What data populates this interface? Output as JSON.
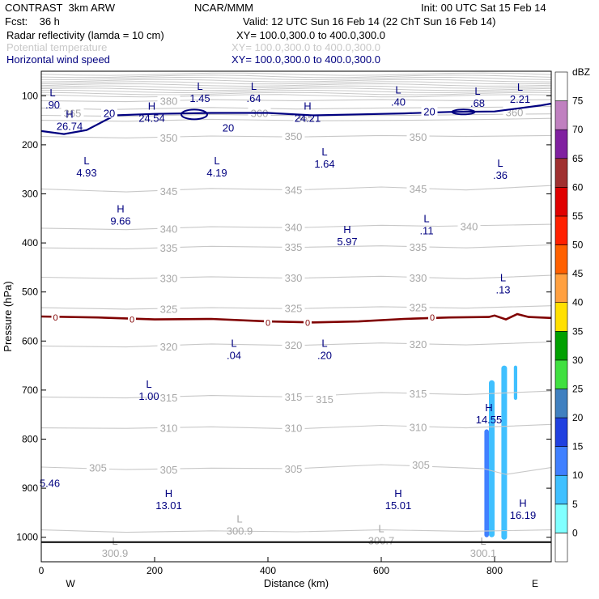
{
  "header": {
    "model": "CONTRAST  3km ARW",
    "source": "NCAR/MMM",
    "init": "Init: 00 UTC Sat 15 Feb 14",
    "fcst": "Fcst:    36 h",
    "valid": "Valid: 12 UTC Sun 16 Feb 14 (22 ChT Sun 16 Feb 14)",
    "fields": [
      {
        "label": "Radar reflectivity (lamda = 10 cm)",
        "xy": "XY= 100.0,300.0 to 400.0,300.0",
        "color": "#000080"
      },
      {
        "label": "Potential temperature",
        "xy": "XY= 100.0,300.0 to 400.0,300.0",
        "color": "#c8c8c8"
      },
      {
        "label": "Horizontal wind speed",
        "xy": "XY= 100.0,300.0 to 400.0,300.0",
        "color": "#000080"
      }
    ]
  },
  "chart_data": {
    "type": "cross-section",
    "xlabel": "Distance (km)",
    "ylabel": "Pressure (hPa)",
    "xlim": [
      0,
      900
    ],
    "ylim": [
      50,
      1050
    ],
    "x_ticks": [
      0,
      200,
      400,
      600,
      800
    ],
    "y_ticks": [
      100,
      200,
      300,
      400,
      500,
      600,
      700,
      800,
      900,
      1000
    ],
    "x_end_labels": {
      "left": "W",
      "right": "E"
    },
    "theta_contours": [
      {
        "value": 380,
        "points": [
          [
            0,
            110
          ],
          [
            150,
            112
          ],
          [
            300,
            108
          ],
          [
            450,
            110
          ],
          [
            600,
            108
          ],
          [
            750,
            110
          ],
          [
            900,
            108
          ]
        ]
      },
      {
        "value": 370,
        "points": [
          [
            0,
            125
          ],
          [
            120,
            128
          ],
          [
            300,
            124
          ],
          [
            450,
            127
          ],
          [
            600,
            125
          ],
          [
            750,
            124
          ],
          [
            900,
            122
          ]
        ]
      },
      {
        "value": 365,
        "points": [
          [
            0,
            140
          ],
          [
            150,
            142
          ],
          [
            300,
            138
          ],
          [
            480,
            141
          ],
          [
            650,
            140
          ],
          [
            800,
            138
          ],
          [
            900,
            137
          ]
        ]
      },
      {
        "value": 360,
        "points": [
          [
            0,
            150
          ],
          [
            150,
            152
          ],
          [
            300,
            148
          ],
          [
            480,
            151
          ],
          [
            650,
            150
          ],
          [
            800,
            148
          ],
          [
            900,
            146
          ]
        ]
      },
      {
        "value": 350,
        "points": [
          [
            0,
            183
          ],
          [
            150,
            186
          ],
          [
            300,
            182
          ],
          [
            450,
            184
          ],
          [
            600,
            181
          ],
          [
            750,
            183
          ],
          [
            900,
            181
          ]
        ]
      },
      {
        "value": 345,
        "points": [
          [
            0,
            290
          ],
          [
            150,
            296
          ],
          [
            300,
            289
          ],
          [
            450,
            292
          ],
          [
            600,
            286
          ],
          [
            750,
            292
          ],
          [
            900,
            283
          ]
        ]
      },
      {
        "value": 340,
        "points": [
          [
            0,
            370
          ],
          [
            150,
            373
          ],
          [
            300,
            367
          ],
          [
            450,
            369
          ],
          [
            600,
            364
          ],
          [
            700,
            366
          ],
          [
            900,
            362
          ]
        ]
      },
      {
        "value": 335,
        "points": [
          [
            0,
            410
          ],
          [
            150,
            412
          ],
          [
            300,
            407
          ],
          [
            450,
            409
          ],
          [
            600,
            406
          ],
          [
            750,
            410
          ],
          [
            900,
            404
          ]
        ]
      },
      {
        "value": 330,
        "points": [
          [
            0,
            470
          ],
          [
            150,
            473
          ],
          [
            300,
            469
          ],
          [
            450,
            472
          ],
          [
            600,
            468
          ],
          [
            750,
            473
          ],
          [
            900,
            466
          ]
        ]
      },
      {
        "value": 325,
        "points": [
          [
            0,
            532
          ],
          [
            150,
            535
          ],
          [
            300,
            532
          ],
          [
            450,
            534
          ],
          [
            600,
            530
          ],
          [
            750,
            533
          ],
          [
            900,
            528
          ]
        ]
      },
      {
        "value": 320,
        "points": [
          [
            0,
            610
          ],
          [
            150,
            612
          ],
          [
            300,
            606
          ],
          [
            450,
            609
          ],
          [
            600,
            604
          ],
          [
            750,
            608
          ],
          [
            900,
            602
          ]
        ]
      },
      {
        "value": 315,
        "points": [
          [
            0,
            714
          ],
          [
            150,
            716
          ],
          [
            300,
            711
          ],
          [
            450,
            714
          ],
          [
            600,
            705
          ],
          [
            750,
            709
          ],
          [
            900,
            702
          ]
        ]
      },
      {
        "value": 310,
        "points": [
          [
            0,
            777
          ],
          [
            150,
            778
          ],
          [
            300,
            775
          ],
          [
            450,
            779
          ],
          [
            600,
            772
          ],
          [
            750,
            777
          ],
          [
            900,
            770
          ]
        ]
      },
      {
        "value": 305,
        "points": [
          [
            0,
            857
          ],
          [
            150,
            862
          ],
          [
            300,
            859
          ],
          [
            450,
            860
          ],
          [
            600,
            852
          ],
          [
            780,
            860
          ],
          [
            820,
            872
          ],
          [
            900,
            858
          ]
        ]
      },
      {
        "value": 300.9,
        "points": [
          [
            0,
            985
          ],
          [
            150,
            990
          ],
          [
            300,
            987
          ],
          [
            450,
            989
          ],
          [
            600,
            985
          ],
          [
            750,
            988
          ],
          [
            900,
            985
          ]
        ]
      }
    ],
    "theta_labels": [
      {
        "text": "380",
        "x": 225,
        "p": 110
      },
      {
        "text": "365",
        "x": 55,
        "p": 135
      },
      {
        "text": "360",
        "x": 385,
        "p": 135
      },
      {
        "text": "365",
        "x": 465,
        "p": 145
      },
      {
        "text": "360",
        "x": 835,
        "p": 133
      },
      {
        "text": "350",
        "x": 225,
        "p": 185
      },
      {
        "text": "350",
        "x": 445,
        "p": 182
      },
      {
        "text": "350",
        "x": 665,
        "p": 184
      },
      {
        "text": "345",
        "x": 225,
        "p": 294
      },
      {
        "text": "345",
        "x": 445,
        "p": 292
      },
      {
        "text": "345",
        "x": 665,
        "p": 289
      },
      {
        "text": "340",
        "x": 225,
        "p": 371
      },
      {
        "text": "340",
        "x": 445,
        "p": 368
      },
      {
        "text": "340",
        "x": 755,
        "p": 366
      },
      {
        "text": "335",
        "x": 225,
        "p": 410
      },
      {
        "text": "335",
        "x": 445,
        "p": 408
      },
      {
        "text": "335",
        "x": 665,
        "p": 408
      },
      {
        "text": "330",
        "x": 225,
        "p": 472
      },
      {
        "text": "330",
        "x": 445,
        "p": 471
      },
      {
        "text": "330",
        "x": 665,
        "p": 471
      },
      {
        "text": "325",
        "x": 225,
        "p": 534
      },
      {
        "text": "325",
        "x": 445,
        "p": 533
      },
      {
        "text": "325",
        "x": 665,
        "p": 531
      },
      {
        "text": "320",
        "x": 225,
        "p": 611
      },
      {
        "text": "320",
        "x": 445,
        "p": 608
      },
      {
        "text": "320",
        "x": 665,
        "p": 606
      },
      {
        "text": "315",
        "x": 225,
        "p": 715
      },
      {
        "text": "315",
        "x": 445,
        "p": 713
      },
      {
        "text": "315",
        "x": 500,
        "p": 718
      },
      {
        "text": "315",
        "x": 665,
        "p": 707
      },
      {
        "text": "310",
        "x": 225,
        "p": 777
      },
      {
        "text": "310",
        "x": 445,
        "p": 777
      },
      {
        "text": "310",
        "x": 665,
        "p": 775
      },
      {
        "text": "305",
        "x": 100,
        "p": 858
      },
      {
        "text": "305",
        "x": 225,
        "p": 862
      },
      {
        "text": "305",
        "x": 445,
        "p": 860
      },
      {
        "text": "305",
        "x": 670,
        "p": 852
      }
    ],
    "theta_extrema": [
      {
        "type": "L",
        "value": "300.9",
        "x": 350,
        "p": 970
      },
      {
        "type": "L",
        "value": "300.7",
        "x": 600,
        "p": 990
      },
      {
        "type": "L",
        "value": "300.9",
        "x": 130,
        "p": 1015
      },
      {
        "type": "L",
        "value": "300.1",
        "x": 780,
        "p": 1015
      }
    ],
    "wind_contours": [
      {
        "value": 20,
        "points": [
          [
            0,
            172
          ],
          [
            40,
            178
          ],
          [
            80,
            170
          ],
          [
            130,
            140
          ],
          [
            200,
            137
          ],
          [
            300,
            135
          ],
          [
            400,
            135
          ],
          [
            480,
            140
          ],
          [
            560,
            138
          ],
          [
            640,
            136
          ],
          [
            720,
            133
          ],
          [
            800,
            132
          ],
          [
            880,
            120
          ],
          [
            900,
            116
          ]
        ],
        "labels": [
          {
            "x": 120,
            "p": 135
          },
          {
            "x": 330,
            "p": 165
          },
          {
            "x": 685,
            "p": 132
          }
        ]
      }
    ],
    "wind_extrema": [
      {
        "type": "L",
        "value": "1.45",
        "x": 280,
        "p": 88
      },
      {
        "type": "L",
        "value": ".64",
        "x": 375,
        "p": 88
      },
      {
        "type": "L",
        "value": ".90",
        "x": 20,
        "p": 101
      },
      {
        "type": "L",
        "value": ".40",
        "x": 630,
        "p": 95
      },
      {
        "type": "L",
        "value": ".68",
        "x": 770,
        "p": 98
      },
      {
        "type": "L",
        "value": "2.21",
        "x": 845,
        "p": 90
      },
      {
        "type": "H",
        "value": "26.74",
        "x": 50,
        "p": 145
      },
      {
        "type": "H",
        "value": "24.54",
        "x": 195,
        "p": 128
      },
      {
        "type": "H",
        "value": "24.21",
        "x": 470,
        "p": 128
      },
      {
        "type": "L",
        "value": "4.93",
        "x": 80,
        "p": 240
      },
      {
        "type": "L",
        "value": "4.19",
        "x": 310,
        "p": 240
      },
      {
        "type": "L",
        "value": "1.64",
        "x": 500,
        "p": 222
      },
      {
        "type": "L",
        "value": ".36",
        "x": 810,
        "p": 245
      },
      {
        "type": "H",
        "value": "9.66",
        "x": 140,
        "p": 338
      },
      {
        "type": "L",
        "value": ".11",
        "x": 680,
        "p": 358
      },
      {
        "type": "H",
        "value": "5.97",
        "x": 540,
        "p": 380
      },
      {
        "type": "L",
        "value": ".13",
        "x": 815,
        "p": 478
      },
      {
        "type": "L",
        "value": ".04",
        "x": 340,
        "p": 612
      },
      {
        "type": "L",
        "value": ".20",
        "x": 500,
        "p": 612
      },
      {
        "type": "L",
        "value": "1.00",
        "x": 190,
        "p": 695
      },
      {
        "type": "H",
        "value": "14.55",
        "x": 790,
        "p": 743
      },
      {
        "type": "H",
        "value": "13.01",
        "x": 225,
        "p": 918
      },
      {
        "type": "H",
        "value": "15.01",
        "x": 630,
        "p": 918
      },
      {
        "type": "H",
        "value": "16.19",
        "x": 850,
        "p": 938
      },
      {
        "type": "",
        "value": "5.46",
        "x": 15,
        "p": 897
      }
    ],
    "freezing_level": {
      "value": 0,
      "color": "#800000",
      "points": [
        [
          0,
          550
        ],
        [
          100,
          552
        ],
        [
          200,
          556
        ],
        [
          300,
          555
        ],
        [
          400,
          560
        ],
        [
          480,
          562
        ],
        [
          560,
          560
        ],
        [
          640,
          555
        ],
        [
          720,
          552
        ],
        [
          790,
          551
        ],
        [
          800,
          548
        ],
        [
          820,
          556
        ],
        [
          840,
          545
        ],
        [
          860,
          551
        ],
        [
          900,
          553
        ]
      ],
      "labels": [
        {
          "x": 25,
          "p": 552
        },
        {
          "x": 160,
          "p": 556
        },
        {
          "x": 400,
          "p": 562
        },
        {
          "x": 470,
          "p": 562
        },
        {
          "x": 690,
          "p": 552
        }
      ]
    },
    "reflectivity_features": [
      {
        "dbz": 5,
        "x0": 790,
        "x1": 800,
        "p0": 680,
        "p1": 1000
      },
      {
        "dbz": 5,
        "x0": 812,
        "x1": 822,
        "p0": 650,
        "p1": 1005
      },
      {
        "dbz": 5,
        "x0": 834,
        "x1": 840,
        "p0": 650,
        "p1": 720
      },
      {
        "dbz": 10,
        "x0": 782,
        "x1": 790,
        "p0": 780,
        "p1": 1000
      }
    ],
    "colorbar": {
      "unit": "dBZ",
      "levels": [
        0,
        5,
        10,
        15,
        20,
        25,
        30,
        35,
        40,
        45,
        50,
        55,
        60,
        65,
        70,
        75
      ],
      "colors": [
        "#ffffff",
        "#80ffff",
        "#40c0ff",
        "#4080ff",
        "#2040e0",
        "#4080c0",
        "#40e040",
        "#00a000",
        "#ffe000",
        "#ffa040",
        "#ff6000",
        "#ff2000",
        "#e00000",
        "#a03030",
        "#8020a0",
        "#c080c0",
        "#ffffff"
      ]
    },
    "surface_p": 1010
  }
}
